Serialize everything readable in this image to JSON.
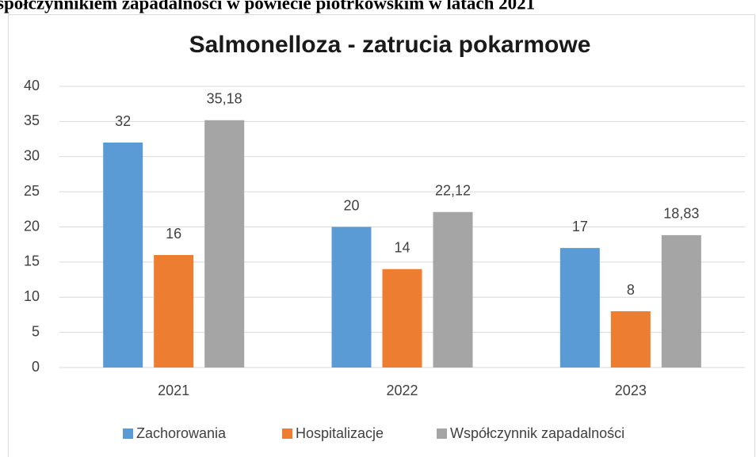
{
  "document_text": "spółczynnikiem zapadalności w powiecie piotrkowskim w latach 2021",
  "chart_data": {
    "type": "bar",
    "title": "Salmonelloza - zatrucia pokarmowe",
    "categories": [
      "2021",
      "2022",
      "2023"
    ],
    "series": [
      {
        "name": "Zachorowania",
        "color": "#5b9bd5",
        "values": [
          32,
          20,
          17
        ]
      },
      {
        "name": "Hospitalizacje",
        "color": "#ed7d31",
        "values": [
          16,
          14,
          8
        ]
      },
      {
        "name": "Współczynnik zapadalności",
        "color": "#a5a5a5",
        "values": [
          35.18,
          22.12,
          18.83
        ],
        "value_labels": [
          "35,18",
          "22,12",
          "18,83"
        ]
      }
    ],
    "ylim": [
      0,
      40
    ],
    "yticks": [
      0,
      5,
      10,
      15,
      20,
      25,
      30,
      35,
      40
    ],
    "grid": true,
    "legend": "bottom"
  }
}
